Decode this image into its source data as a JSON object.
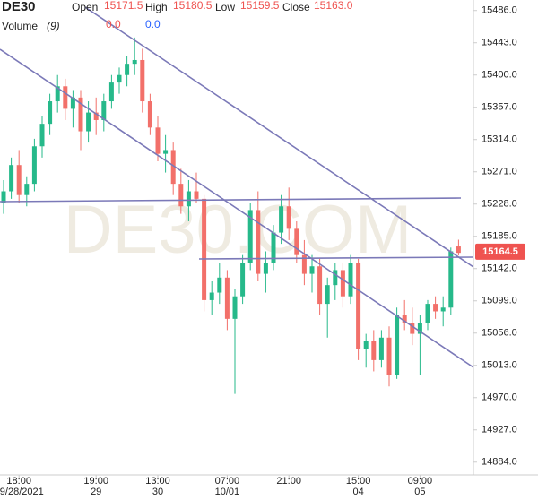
{
  "chart_data": {
    "type": "candlestick",
    "symbol": "DE30",
    "watermark": "DE30.COM",
    "header": {
      "open_label": "Open",
      "open": "15171.5",
      "high_label": "High",
      "high": "15180.5",
      "low_label": "Low",
      "low": "15159.5",
      "close_label": "Close",
      "close": "15163.0"
    },
    "volume": {
      "label": "Volume",
      "period": "(9)",
      "values": [
        "0.0",
        "0.0"
      ],
      "colors": [
        "#ef5350",
        "#2962ff"
      ]
    },
    "categories": [
      null,
      null,
      "18:00",
      null,
      null,
      null,
      null,
      null,
      null,
      null,
      null,
      null,
      "19:00",
      null,
      null,
      null,
      null,
      null,
      null,
      null,
      "13:00",
      null,
      null,
      null,
      null,
      null,
      null,
      null,
      null,
      "07:00",
      null,
      null,
      null,
      null,
      null,
      null,
      null,
      "21:00",
      null,
      null,
      null,
      null,
      null,
      null,
      null,
      null,
      "15:00",
      null,
      null,
      null,
      null,
      null,
      null,
      null,
      "09:00",
      null,
      null,
      null,
      null,
      null
    ],
    "category_dates": [
      null,
      null,
      "09/28/2021",
      null,
      null,
      null,
      null,
      null,
      null,
      null,
      null,
      null,
      "29",
      null,
      null,
      null,
      null,
      null,
      null,
      null,
      "30",
      null,
      null,
      null,
      null,
      null,
      null,
      null,
      null,
      "10/01",
      null,
      null,
      null,
      null,
      null,
      null,
      null,
      null,
      null,
      null,
      null,
      null,
      null,
      null,
      null,
      null,
      "04",
      null,
      null,
      null,
      null,
      null,
      null,
      null,
      "05",
      null,
      null,
      null,
      null,
      null
    ],
    "open": [
      15230,
      15245,
      15280,
      15240,
      15255,
      15305,
      15335,
      15365,
      15385,
      15355,
      15370,
      15325,
      15350,
      15340,
      15365,
      15390,
      15400,
      15415,
      15420,
      15365,
      15330,
      15295,
      15300,
      15255,
      15225,
      15245,
      15235,
      15100,
      15110,
      15130,
      15075,
      15105,
      15150,
      15220,
      15135,
      15150,
      15190,
      15225,
      15195,
      15160,
      15135,
      15145,
      15095,
      15120,
      15140,
      15105,
      15150,
      15035,
      15045,
      15020,
      15050,
      15000,
      15080,
      15070,
      15055,
      15070,
      15095,
      15085,
      15090,
      15171.5
    ],
    "high": [
      15260,
      15290,
      15300,
      15265,
      15315,
      15345,
      15375,
      15400,
      15395,
      15380,
      15380,
      15365,
      15370,
      15375,
      15400,
      15410,
      15425,
      15450,
      15435,
      15375,
      15345,
      15320,
      15310,
      15275,
      15260,
      15270,
      15240,
      15125,
      15150,
      15140,
      15115,
      15160,
      15230,
      15245,
      15165,
      15200,
      15240,
      15250,
      15205,
      15180,
      15160,
      15155,
      15130,
      15150,
      15150,
      15160,
      15155,
      15055,
      15060,
      15060,
      15065,
      15090,
      15100,
      15090,
      15080,
      15100,
      15105,
      15105,
      15170,
      15180.5
    ],
    "low": [
      15215,
      15235,
      15230,
      15225,
      15245,
      15290,
      15320,
      15350,
      15340,
      15330,
      15300,
      15310,
      15320,
      15325,
      15355,
      15375,
      15385,
      15400,
      15350,
      15320,
      15285,
      15270,
      15240,
      15215,
      15205,
      15230,
      15085,
      15080,
      15095,
      15060,
      14975,
      15095,
      15140,
      15125,
      15110,
      15140,
      15175,
      15180,
      15150,
      15120,
      15110,
      15080,
      15050,
      15100,
      15090,
      15095,
      15020,
      15010,
      15005,
      15010,
      14985,
      14995,
      15060,
      15040,
      15000,
      15060,
      15075,
      15065,
      15080,
      15159.5
    ],
    "close": [
      15245,
      15280,
      15240,
      15255,
      15305,
      15335,
      15365,
      15385,
      15355,
      15370,
      15325,
      15350,
      15340,
      15365,
      15390,
      15400,
      15415,
      15420,
      15365,
      15330,
      15295,
      15300,
      15255,
      15225,
      15245,
      15235,
      15100,
      15110,
      15130,
      15075,
      15105,
      15150,
      15220,
      15135,
      15150,
      15190,
      15225,
      15195,
      15160,
      15135,
      15145,
      15095,
      15120,
      15140,
      15105,
      15150,
      15035,
      15045,
      15020,
      15050,
      15000,
      15080,
      15070,
      15055,
      15070,
      15095,
      15085,
      15090,
      15165,
      15163
    ],
    "up_color": "#26b98a",
    "down_color": "#f2706a",
    "last_price": 15164.5,
    "last_price_color": "#ef5350",
    "ylim": [
      14867,
      15500
    ],
    "yticks": [
      {
        "value": 15486,
        "label": "15486.0"
      },
      {
        "value": 15443,
        "label": "15443.0"
      },
      {
        "value": 15400,
        "label": "15400.0"
      },
      {
        "value": 15357,
        "label": "15357.0"
      },
      {
        "value": 15314,
        "label": "15314.0"
      },
      {
        "value": 15271,
        "label": "15271.0"
      },
      {
        "value": 15228,
        "label": "15228.0"
      },
      {
        "value": 15185,
        "label": "15185.0"
      },
      {
        "value": 15142,
        "label": "15142.0"
      },
      {
        "value": 15099,
        "label": "15099.0"
      },
      {
        "value": 15056,
        "label": "15056.0"
      },
      {
        "value": 15013,
        "label": "15013.0"
      },
      {
        "value": 14970,
        "label": "14970.0"
      },
      {
        "value": 14927,
        "label": "14927.0"
      },
      {
        "value": 14884,
        "label": "14884.0"
      }
    ]
  }
}
